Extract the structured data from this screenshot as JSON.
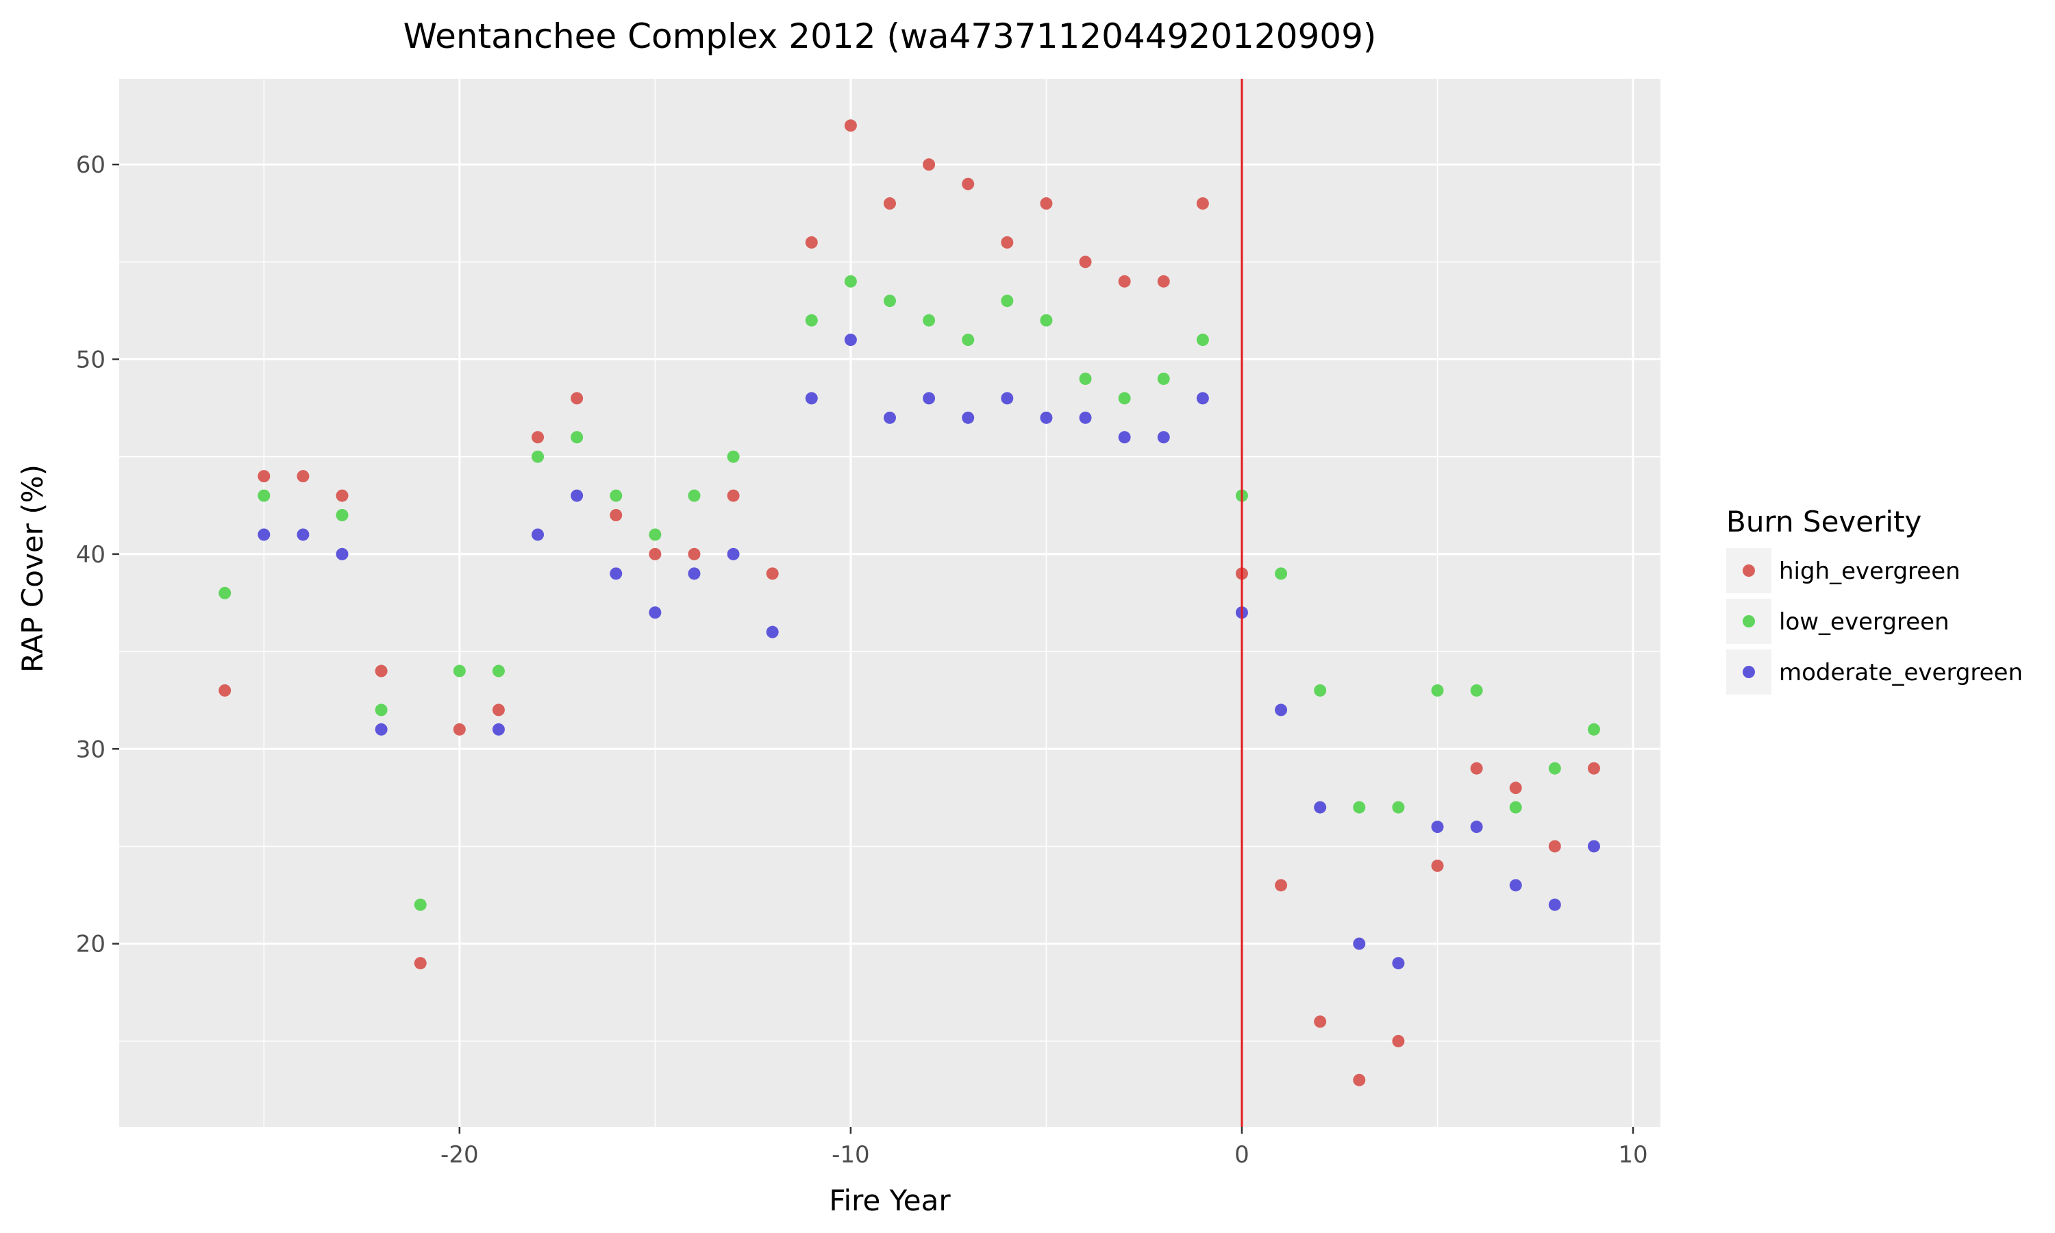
{
  "chart_data": {
    "type": "scatter",
    "title": "Wentanchee Complex 2012 (wa4737112044920120909)",
    "xlabel": "Fire Year",
    "ylabel": "RAP Cover (%)",
    "xlim": [
      -28.7,
      10.7
    ],
    "ylim": [
      10.6,
      64.4
    ],
    "xticks": [
      -20,
      -10,
      0,
      10
    ],
    "yticks": [
      20,
      30,
      40,
      50,
      60
    ],
    "x_minor_ticks": [
      -25,
      -15,
      -5,
      5
    ],
    "y_minor_ticks": [
      15,
      25,
      35,
      45,
      55
    ],
    "grid": true,
    "legend_title": "Burn Severity",
    "legend_position": "right",
    "vline": {
      "x": 0,
      "color": "#e41a1c"
    },
    "series": [
      {
        "name": "high_evergreen",
        "color": "#d95f5a",
        "points": [
          [
            -26,
            33
          ],
          [
            -25,
            44
          ],
          [
            -24,
            44
          ],
          [
            -23,
            43
          ],
          [
            -22,
            34
          ],
          [
            -21,
            19
          ],
          [
            -20,
            31
          ],
          [
            -19,
            32
          ],
          [
            -18,
            46
          ],
          [
            -17,
            48
          ],
          [
            -16,
            42
          ],
          [
            -15,
            40
          ],
          [
            -14,
            40
          ],
          [
            -13,
            43
          ],
          [
            -12,
            39
          ],
          [
            -11,
            56
          ],
          [
            -10,
            62
          ],
          [
            -9,
            58
          ],
          [
            -8,
            60
          ],
          [
            -7,
            59
          ],
          [
            -6,
            56
          ],
          [
            -5,
            58
          ],
          [
            -4,
            55
          ],
          [
            -3,
            54
          ],
          [
            -2,
            54
          ],
          [
            -1,
            58
          ],
          [
            0,
            39
          ],
          [
            1,
            23
          ],
          [
            2,
            16
          ],
          [
            3,
            13
          ],
          [
            4,
            15
          ],
          [
            5,
            24
          ],
          [
            6,
            29
          ],
          [
            7,
            28
          ],
          [
            8,
            25
          ],
          [
            9,
            29
          ]
        ]
      },
      {
        "name": "low_evergreen",
        "color": "#5fd55c",
        "points": [
          [
            -26,
            38
          ],
          [
            -25,
            43
          ],
          [
            -23,
            42
          ],
          [
            -22,
            32
          ],
          [
            -21,
            22
          ],
          [
            -20,
            34
          ],
          [
            -19,
            34
          ],
          [
            -18,
            45
          ],
          [
            -17,
            46
          ],
          [
            -16,
            43
          ],
          [
            -15,
            41
          ],
          [
            -14,
            43
          ],
          [
            -13,
            45
          ],
          [
            -11,
            52
          ],
          [
            -10,
            54
          ],
          [
            -9,
            53
          ],
          [
            -8,
            52
          ],
          [
            -7,
            51
          ],
          [
            -6,
            53
          ],
          [
            -5,
            52
          ],
          [
            -4,
            49
          ],
          [
            -3,
            48
          ],
          [
            -2,
            49
          ],
          [
            -1,
            51
          ],
          [
            0,
            43
          ],
          [
            1,
            39
          ],
          [
            2,
            33
          ],
          [
            3,
            27
          ],
          [
            4,
            27
          ],
          [
            5,
            33
          ],
          [
            6,
            33
          ],
          [
            7,
            27
          ],
          [
            8,
            29
          ],
          [
            9,
            31
          ]
        ]
      },
      {
        "name": "moderate_evergreen",
        "color": "#5e56da",
        "points": [
          [
            -25,
            41
          ],
          [
            -24,
            41
          ],
          [
            -23,
            40
          ],
          [
            -22,
            31
          ],
          [
            -19,
            31
          ],
          [
            -18,
            41
          ],
          [
            -17,
            43
          ],
          [
            -16,
            39
          ],
          [
            -15,
            37
          ],
          [
            -14,
            39
          ],
          [
            -13,
            40
          ],
          [
            -12,
            36
          ],
          [
            -11,
            48
          ],
          [
            -10,
            51
          ],
          [
            -9,
            47
          ],
          [
            -8,
            48
          ],
          [
            -7,
            47
          ],
          [
            -6,
            48
          ],
          [
            -5,
            47
          ],
          [
            -4,
            47
          ],
          [
            -3,
            46
          ],
          [
            -2,
            46
          ],
          [
            -1,
            48
          ],
          [
            0,
            37
          ],
          [
            1,
            32
          ],
          [
            2,
            27
          ],
          [
            3,
            20
          ],
          [
            4,
            19
          ],
          [
            5,
            26
          ],
          [
            6,
            26
          ],
          [
            7,
            23
          ],
          [
            8,
            22
          ],
          [
            9,
            25
          ]
        ]
      }
    ]
  }
}
